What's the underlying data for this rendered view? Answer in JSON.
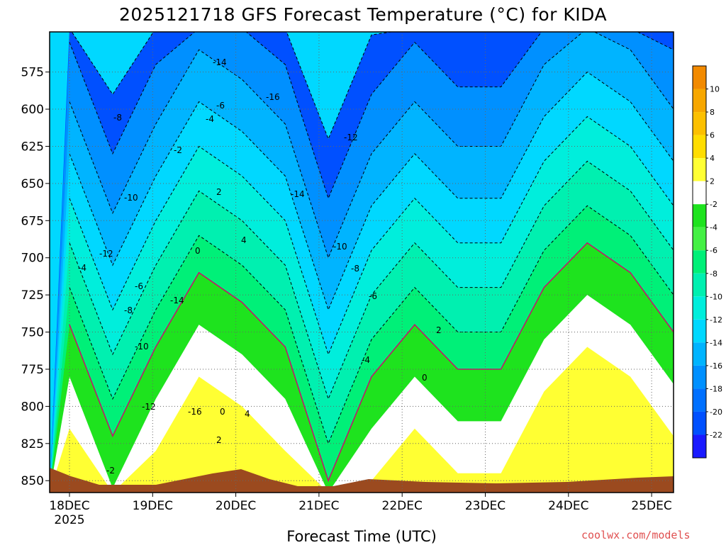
{
  "chart_data": {
    "type": "heatmap",
    "title": "2025121718 GFS Forecast Temperature (°C) for KIDA",
    "xlabel": "Forecast Time (UTC)",
    "ylabel": "",
    "y_scale": "pressure (hPa), inverted",
    "ylim": [
      850,
      550
    ],
    "y_ticks": [
      "575",
      "600",
      "625",
      "650",
      "675",
      "700",
      "725",
      "750",
      "775",
      "800",
      "825",
      "850"
    ],
    "x_ticks": [
      "18DEC",
      "19DEC",
      "20DEC",
      "21DEC",
      "22DEC",
      "23DEC",
      "24DEC",
      "25DEC"
    ],
    "x_tick_sub": "2025",
    "grid": true,
    "colorbar": {
      "levels": [
        "10",
        "8",
        "6",
        "4",
        "2",
        "-2",
        "-4",
        "-6",
        "-8",
        "-10",
        "-12",
        "-14",
        "-16",
        "-18",
        "-20",
        "-22"
      ],
      "colors": [
        "#f28a00",
        "#f7a700",
        "#fcc000",
        "#ffdd00",
        "#ffff33",
        "#ffffff",
        "#1ee31e",
        "#44f044",
        "#00f078",
        "#00f0b0",
        "#00eedc",
        "#00d8ff",
        "#00b4ff",
        "#0090ff",
        "#0070ff",
        "#0050ff",
        "#1a1aff"
      ]
    },
    "series": [
      {
        "name": "",
        "x": [
          "18DEC 00Z",
          "18DEC 12Z",
          "19DEC 00Z",
          "19DEC 12Z",
          "20DEC 00Z",
          "20DEC 12Z",
          "21DEC 00Z",
          "21DEC 12Z",
          "22DEC 00Z",
          "22DEC 12Z",
          "23DEC 00Z",
          "23DEC 12Z",
          "24DEC 00Z",
          "24DEC 12Z",
          "25DEC 00Z"
        ],
        "freezing_level_hPa": [
          745,
          820,
          760,
          710,
          730,
          760,
          850,
          780,
          745,
          775,
          775,
          720,
          690,
          710,
          750
        ]
      }
    ],
    "contour_labels": [
      "-2",
      "-4",
      "-6",
      "-8",
      "-10",
      "-12",
      "-14",
      "-16",
      "0",
      "2",
      "4",
      "-12",
      "-10",
      "-8",
      "-6",
      "-4",
      "-2",
      "0",
      "2",
      "4",
      "-14",
      "-16",
      "-14",
      "-12",
      "-10",
      "-8",
      "-6",
      "-4",
      "2",
      "0"
    ]
  },
  "credit": "coolwx.com/models"
}
